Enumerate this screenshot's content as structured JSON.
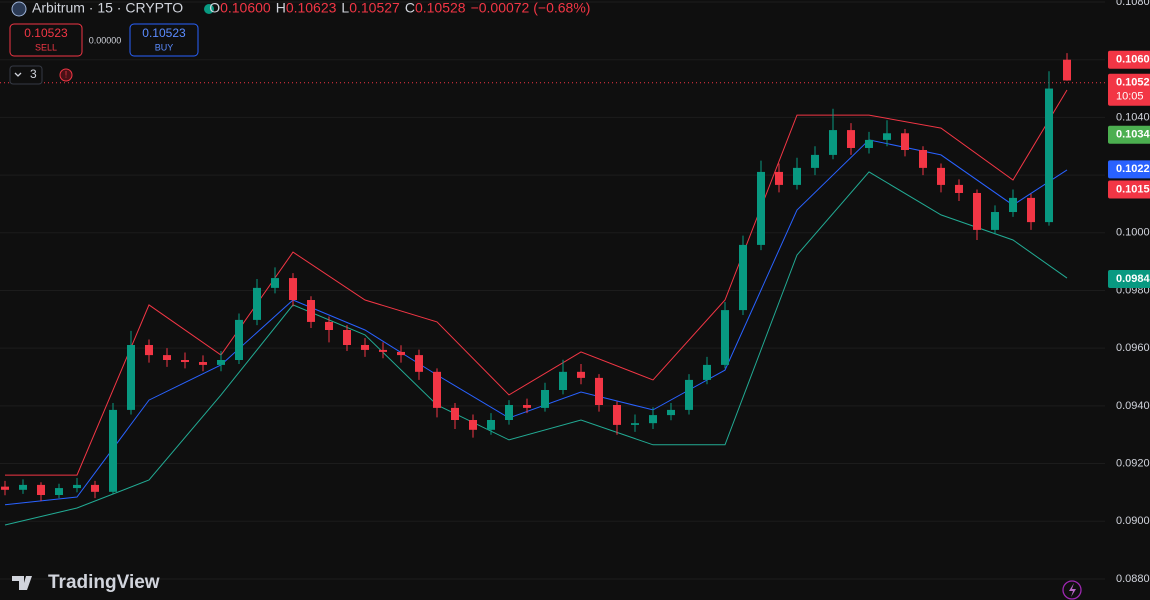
{
  "header": {
    "symbol": "Arbitrum · 15 · CRYPTO",
    "ohlc": [
      {
        "key": "O",
        "value": "0.10600"
      },
      {
        "key": "H",
        "value": "0.10623"
      },
      {
        "key": "L",
        "value": "0.10527"
      },
      {
        "key": "C",
        "value": "0.10528"
      }
    ],
    "change": "−0.00072 (−0.68%)",
    "sell_price": "0.10523",
    "sell_label": "SELL",
    "spread": "0.00000",
    "buy_price": "0.10523",
    "buy_label": "BUY",
    "indicators_count": "3",
    "logo": "TradingView"
  },
  "chart_data": {
    "type": "candlestick",
    "up_color": "#089981",
    "down_color": "#f23645",
    "grid": true,
    "ylim": [
      0.08727,
      0.10807
    ],
    "yticks": [
      {
        "value": 0.108,
        "label": "0.1080"
      },
      {
        "value": 0.106,
        "label": "0.1060"
      },
      {
        "value": 0.104,
        "label": "0.1040"
      },
      {
        "value": 0.102,
        "label": "0.1020"
      },
      {
        "value": 0.1,
        "label": "0.1000"
      },
      {
        "value": 0.098,
        "label": "0.0980"
      },
      {
        "value": 0.096,
        "label": "0.0960"
      },
      {
        "value": 0.094,
        "label": "0.0940"
      },
      {
        "value": 0.092,
        "label": "0.0920"
      },
      {
        "value": 0.09,
        "label": "0.0900"
      },
      {
        "value": 0.088,
        "label": "0.0880"
      }
    ],
    "open": [
      0.0912,
      0.09109,
      0.09126,
      0.09091,
      0.09115,
      0.09126,
      0.09102,
      0.09386,
      0.09611,
      0.09576,
      0.09559,
      0.09552,
      0.09542,
      0.09559,
      0.09698,
      0.09809,
      0.09843,
      0.09767,
      0.09691,
      0.09663,
      0.09611,
      0.09594,
      0.09587,
      0.09576,
      0.09518,
      0.09393,
      0.09351,
      0.09317,
      0.09351,
      0.09403,
      0.09393,
      0.09455,
      0.09518,
      0.09497,
      0.09403,
      0.09334,
      0.0934,
      0.09368,
      0.09386,
      0.0949,
      0.09542,
      0.09732,
      0.09958,
      0.10211,
      0.10166,
      0.10225,
      0.1027,
      0.10356,
      0.10294,
      0.10322,
      0.10345,
      0.10287,
      0.10225,
      0.10166,
      0.10138,
      0.1001,
      0.10072,
      0.10121,
      0.10037,
      0.106
    ],
    "high": [
      0.0914,
      0.09145,
      0.09135,
      0.0913,
      0.0915,
      0.0914,
      0.0941,
      0.0966,
      0.0963,
      0.096,
      0.09585,
      0.09575,
      0.0959,
      0.0972,
      0.0984,
      0.0988,
      0.0986,
      0.0978,
      0.0971,
      0.0968,
      0.09635,
      0.0962,
      0.0961,
      0.09595,
      0.0953,
      0.0941,
      0.0937,
      0.09375,
      0.0942,
      0.09425,
      0.0948,
      0.0956,
      0.09545,
      0.0951,
      0.09415,
      0.0937,
      0.09395,
      0.0941,
      0.0951,
      0.0957,
      0.0976,
      0.0999,
      0.1025,
      0.1024,
      0.1026,
      0.103,
      0.1043,
      0.1038,
      0.1035,
      0.1039,
      0.1036,
      0.103,
      0.1024,
      0.10185,
      0.1015,
      0.10095,
      0.1015,
      0.10135,
      0.1056,
      0.10623
    ],
    "low": [
      0.0909,
      0.09095,
      0.0907,
      0.0908,
      0.091,
      0.0908,
      0.09095,
      0.0937,
      0.0955,
      0.09535,
      0.0953,
      0.0952,
      0.0952,
      0.09545,
      0.0968,
      0.0979,
      0.09745,
      0.0967,
      0.0962,
      0.0959,
      0.0957,
      0.09565,
      0.0955,
      0.0949,
      0.0936,
      0.0932,
      0.0929,
      0.093,
      0.09335,
      0.09375,
      0.0938,
      0.0944,
      0.09475,
      0.0938,
      0.093,
      0.0931,
      0.0932,
      0.0935,
      0.0937,
      0.09475,
      0.0953,
      0.09715,
      0.0994,
      0.1014,
      0.1015,
      0.102,
      0.10255,
      0.1027,
      0.10275,
      0.103,
      0.10265,
      0.102,
      0.1014,
      0.1011,
      0.09975,
      0.09995,
      0.10055,
      0.1001,
      0.10025,
      0.10527
    ],
    "close": [
      0.09109,
      0.09126,
      0.09091,
      0.09115,
      0.09126,
      0.09102,
      0.09386,
      0.09611,
      0.09576,
      0.09559,
      0.09552,
      0.09542,
      0.09559,
      0.09698,
      0.09809,
      0.09843,
      0.09767,
      0.09691,
      0.09663,
      0.09611,
      0.09594,
      0.09587,
      0.09576,
      0.09518,
      0.09393,
      0.09351,
      0.09317,
      0.09351,
      0.09403,
      0.09393,
      0.09455,
      0.09518,
      0.09497,
      0.09403,
      0.09334,
      0.0934,
      0.09368,
      0.09386,
      0.0949,
      0.09542,
      0.09732,
      0.09958,
      0.10211,
      0.10166,
      0.10225,
      0.1027,
      0.10356,
      0.10294,
      0.10322,
      0.10345,
      0.10287,
      0.10225,
      0.10166,
      0.10138,
      0.1001,
      0.10072,
      0.10121,
      0.10037,
      0.105,
      0.10528
    ],
    "bands": {
      "x": [
        0,
        4,
        8,
        12,
        16,
        20,
        24,
        28,
        32,
        36,
        40,
        44,
        48,
        52,
        56,
        59
      ],
      "lines": [
        {
          "color": "#f23645",
          "values": [
            0.0916,
            0.0916,
            0.0975,
            0.09576,
            0.09933,
            0.09767,
            0.09691,
            0.09438,
            0.09587,
            0.0949,
            0.09767,
            0.10408,
            0.10408,
            0.10363,
            0.10183,
            0.10495
          ]
        },
        {
          "color": "#2962ff",
          "values": [
            0.09057,
            0.09084,
            0.0942,
            0.09542,
            0.09767,
            0.09663,
            0.09507,
            0.09358,
            0.09448,
            0.09386,
            0.09524,
            0.10079,
            0.10322,
            0.1027,
            0.10096,
            0.10218
          ]
        },
        {
          "color": "#22ab94",
          "values": [
            0.08987,
            0.09046,
            0.09143,
            0.09438,
            0.0975,
            0.09646,
            0.09403,
            0.09282,
            0.09351,
            0.09265,
            0.09265,
            0.09923,
            0.10211,
            0.10062,
            0.09975,
            0.09843
          ]
        }
      ]
    },
    "price_labels": [
      {
        "value": 0.106,
        "label": "0.1060",
        "color": "#f23645"
      },
      {
        "value": 0.1052,
        "label": "0.1052",
        "color": "#f23645",
        "countdown": "10:05"
      },
      {
        "value": 0.1034,
        "label": "0.1034",
        "color": "#4caf50"
      },
      {
        "value": 0.1022,
        "label": "0.1022",
        "color": "#2962ff"
      },
      {
        "value": 0.1015,
        "label": "0.1015",
        "color": "#f23645"
      },
      {
        "value": 0.0984,
        "label": "0.0984",
        "color": "#089981"
      }
    ]
  }
}
